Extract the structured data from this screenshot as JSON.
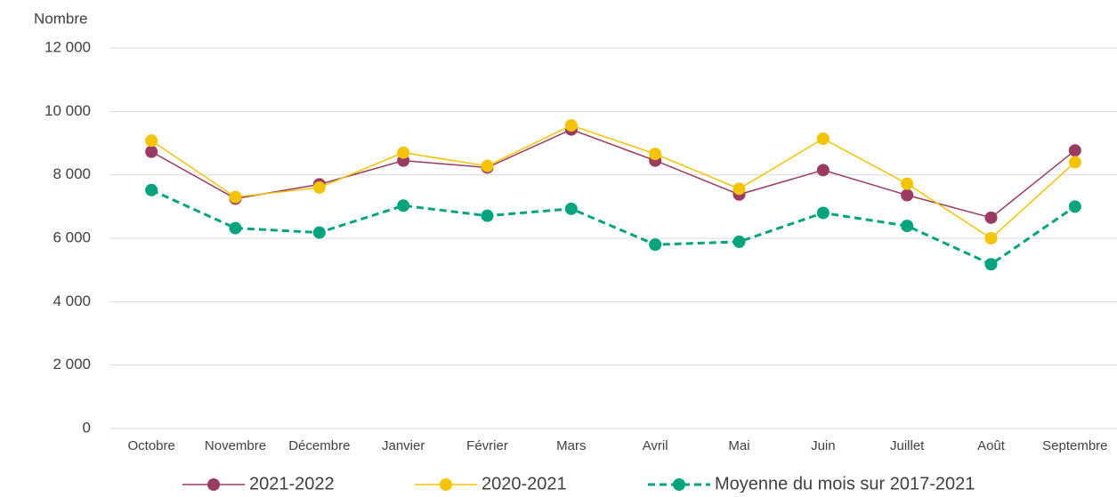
{
  "chart_data": {
    "type": "line",
    "y_label": "Nombre",
    "categories": [
      "Octobre",
      "Novembre",
      "Décembre",
      "Janvier",
      "Février",
      "Mars",
      "Avril",
      "Mai",
      "Juin",
      "Juillet",
      "Août",
      "Septembre"
    ],
    "series": [
      {
        "name": "2021-2022",
        "color": "#9b3a62",
        "dashed": false,
        "values": [
          8730,
          7250,
          7700,
          8450,
          8230,
          9430,
          8450,
          7380,
          8150,
          7360,
          6650,
          8770
        ]
      },
      {
        "name": "2020-2021",
        "color": "#f5c400",
        "dashed": false,
        "values": [
          9080,
          7300,
          7600,
          8700,
          8280,
          9560,
          8660,
          7560,
          9140,
          7720,
          6000,
          8400
        ]
      },
      {
        "name": "Moyenne du mois sur 2017-2021",
        "color": "#00a57d",
        "dashed": true,
        "values": [
          7520,
          6320,
          6180,
          7030,
          6710,
          6930,
          5800,
          5890,
          6800,
          6390,
          5180,
          7000
        ]
      }
    ],
    "ylim": [
      0,
      12000
    ],
    "yticks": [
      0,
      {
        "value": 2000,
        "label": "2 000"
      },
      {
        "value": 4000,
        "label": "4 000"
      },
      {
        "value": 6000,
        "label": "6 000"
      },
      {
        "value": 8000,
        "label": "8 000"
      },
      {
        "value": 10000,
        "label": "10 000"
      },
      {
        "value": 12000,
        "label": "12 000"
      }
    ],
    "grid": true,
    "legend": "bottom"
  }
}
